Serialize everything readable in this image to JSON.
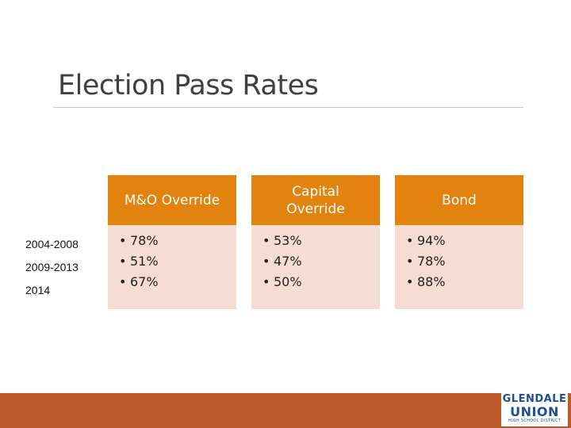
{
  "slide": {
    "title": "Election Pass Rates"
  },
  "years": [
    "2004-2008",
    "2009-2013",
    "2014"
  ],
  "cards": [
    {
      "header": "M&O Override",
      "values": [
        "78%",
        "51%",
        "67%"
      ]
    },
    {
      "header": "Capital Override",
      "values": [
        "53%",
        "47%",
        "50%"
      ]
    },
    {
      "header": "Bond",
      "values": [
        "94%",
        "78%",
        "88%"
      ]
    }
  ],
  "logo": {
    "top": "GLENDALE",
    "middle": "UNION",
    "bottom": "HIGH SCHOOL DISTRICT"
  },
  "colors": {
    "header": "#e2820f",
    "body": "#f5ddd3",
    "footer": "#bc5a2c",
    "logo": "#1f4f8c"
  }
}
